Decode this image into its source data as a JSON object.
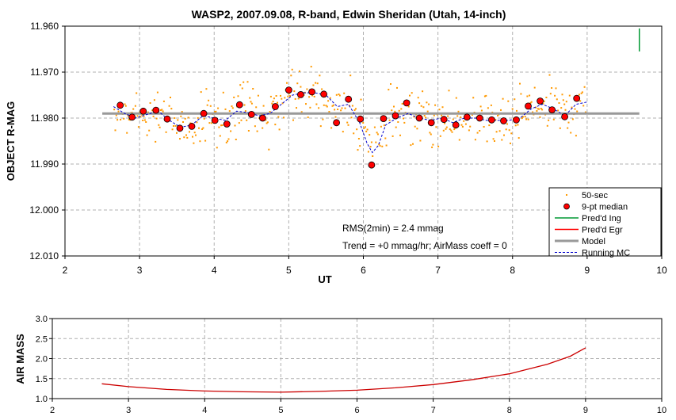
{
  "chart_data": [
    {
      "type": "scatter",
      "title": "WASP2, 2007.09.08, R-band, Edwin Sheridan (Utah, 14-inch)",
      "xlabel": "UT",
      "ylabel": "OBJECT R-MAG",
      "xlim": [
        2,
        10
      ],
      "ylim": [
        11.96,
        12.01
      ],
      "y_inverted": true,
      "grid": true,
      "x_ticks": [
        "2",
        "3",
        "4",
        "5",
        "6",
        "7",
        "8",
        "9",
        "10"
      ],
      "y_ticks": [
        "11.960",
        "11.970",
        "11.980",
        "11.990",
        "12.000",
        "12.010"
      ],
      "annotations": [
        "RMS(2min) = 2.4 mmag",
        "Trend = +0 mmag/hr; AirMass coeff = 0"
      ],
      "legend_position": "bottom-right",
      "legend": [
        "50-sec",
        "9-pt median",
        "Pred'd Ing",
        "Pred'd Egr",
        "Model",
        "Running MC"
      ],
      "colors": {
        "50-sec": "#ff9900",
        "9-pt median": "#ff0000",
        "Pred'd Ing": "#009933",
        "Pred'd Egr": "#ff0000",
        "Model": "#999999",
        "Running MC": "#0000cc"
      },
      "series": [
        {
          "name": "9-pt median",
          "x": [
            2.74,
            2.9,
            3.05,
            3.22,
            3.37,
            3.54,
            3.7,
            3.86,
            4.01,
            4.17,
            4.34,
            4.5,
            4.65,
            4.82,
            5.0,
            5.16,
            5.31,
            5.47,
            5.64,
            5.8,
            5.96,
            6.11,
            6.27,
            6.43,
            6.58,
            6.75,
            6.91,
            7.08,
            7.24,
            7.39,
            7.56,
            7.72,
            7.88,
            8.05,
            8.21,
            8.37,
            8.53,
            8.7,
            8.86
          ],
          "y": [
            11.9772,
            11.9798,
            11.9785,
            11.9783,
            11.9802,
            11.9822,
            11.9818,
            11.979,
            11.9805,
            11.9813,
            11.9771,
            11.9792,
            11.98,
            11.9775,
            11.9739,
            11.9749,
            11.9743,
            11.9748,
            11.981,
            11.9759,
            11.9802,
            11.9902,
            11.9801,
            11.9795,
            11.9767,
            11.98,
            11.981,
            11.9803,
            11.9815,
            11.9798,
            11.98,
            11.9804,
            11.9806,
            11.9804,
            11.9774,
            11.9763,
            11.9782,
            11.9797,
            11.9757
          ]
        },
        {
          "name": "Running MC",
          "x": [
            2.65,
            2.8,
            2.95,
            3.1,
            3.25,
            3.4,
            3.55,
            3.7,
            3.85,
            4.0,
            4.15,
            4.3,
            4.45,
            4.6,
            4.75,
            4.9,
            5.05,
            5.2,
            5.35,
            5.5,
            5.65,
            5.8,
            5.95,
            6.05,
            6.12,
            6.2,
            6.3,
            6.45,
            6.6,
            6.75,
            6.9,
            7.05,
            7.2,
            7.35,
            7.5,
            7.65,
            7.8,
            7.95,
            8.1,
            8.25,
            8.4,
            8.55,
            8.7,
            8.85,
            9.0
          ],
          "y": [
            11.9775,
            11.979,
            11.98,
            11.9792,
            11.9785,
            11.9805,
            11.982,
            11.9815,
            11.9795,
            11.98,
            11.9805,
            11.9785,
            11.9788,
            11.9795,
            11.979,
            11.977,
            11.975,
            11.9745,
            11.9745,
            11.975,
            11.9775,
            11.977,
            11.981,
            11.9855,
            11.9875,
            11.986,
            11.9815,
            11.98,
            11.979,
            11.98,
            11.9805,
            11.98,
            11.981,
            11.98,
            11.98,
            11.9805,
            11.9805,
            11.9805,
            11.98,
            11.978,
            11.977,
            11.978,
            11.9795,
            11.977,
            11.9765
          ]
        },
        {
          "name": "Model",
          "x": [
            2.5,
            9.7
          ],
          "y": [
            11.979,
            11.979
          ]
        },
        {
          "name": "Pred'd Ing",
          "x": [
            9.7,
            9.7
          ],
          "y": [
            11.9605,
            11.9655
          ]
        }
      ]
    },
    {
      "type": "line",
      "ylabel": "AIR MASS",
      "xlim": [
        2,
        10
      ],
      "ylim": [
        1.0,
        3.0
      ],
      "grid": true,
      "x_ticks": [
        "2",
        "3",
        "4",
        "5",
        "6",
        "7",
        "8",
        "9",
        "10"
      ],
      "y_ticks": [
        "1.0",
        "1.5",
        "2.0",
        "2.5",
        "3.0"
      ],
      "color": "#cc0000",
      "series": [
        {
          "name": "",
          "x": [
            2.65,
            3.0,
            3.5,
            4.0,
            4.5,
            5.0,
            5.5,
            6.0,
            6.5,
            7.0,
            7.5,
            8.0,
            8.5,
            8.8,
            9.0
          ],
          "y": [
            1.37,
            1.3,
            1.23,
            1.19,
            1.17,
            1.16,
            1.18,
            1.21,
            1.27,
            1.35,
            1.47,
            1.62,
            1.86,
            2.06,
            2.27
          ]
        }
      ]
    }
  ]
}
